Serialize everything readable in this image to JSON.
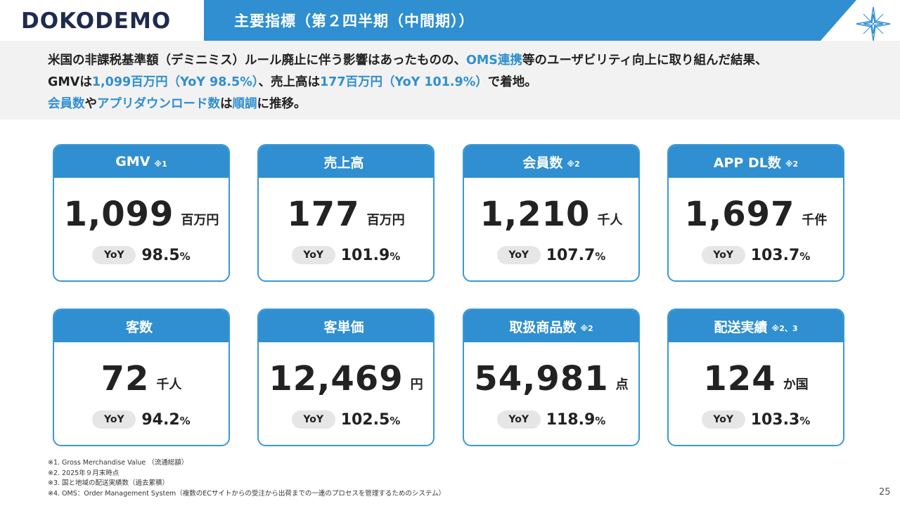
{
  "brand": {
    "logo_text": "DOKODEMO",
    "accent_color": "#2f8fd0",
    "logo_color": "#1f2b4d"
  },
  "header": {
    "title": "主要指標（第２四半期（中間期））"
  },
  "summary": {
    "l1a": "米国の非課税基準額（デミニミス）ルール廃止に伴う影響はあったものの、",
    "l1b": "OMS連携",
    "l1c": "等のユーザビリティ向上に取り組んだ結果、",
    "l2a": "GMVは",
    "l2b": "1,099百万円（YoY 98.5%）",
    "l2c": "、売上高は",
    "l2d": "177百万円（YoY 101.9%）",
    "l2e": "で着地。",
    "l3a": "会員数",
    "l3b": "や",
    "l3c": "アプリダウンロード数",
    "l3d": "は",
    "l3e": "順調",
    "l3f": "に推移。"
  },
  "cards": [
    {
      "title": "GMV",
      "note": "※1",
      "value": "1,099",
      "unit": "百万円",
      "yoy_label": "YoY",
      "yoy": "98.5",
      "pct": "%"
    },
    {
      "title": "売上高",
      "note": "",
      "value": "177",
      "unit": "百万円",
      "yoy_label": "YoY",
      "yoy": "101.9",
      "pct": "%"
    },
    {
      "title": "会員数",
      "note": "※2",
      "value": "1,210",
      "unit": "千人",
      "yoy_label": "YoY",
      "yoy": "107.7",
      "pct": "%"
    },
    {
      "title": "APP DL数",
      "note": "※2",
      "value": "1,697",
      "unit": "千件",
      "yoy_label": "YoY",
      "yoy": "103.7",
      "pct": "%"
    },
    {
      "title": "客数",
      "note": "",
      "value": "72",
      "unit": "千人",
      "yoy_label": "YoY",
      "yoy": "94.2",
      "pct": "%"
    },
    {
      "title": "客単価",
      "note": "",
      "value": "12,469",
      "unit": "円",
      "yoy_label": "YoY",
      "yoy": "102.5",
      "pct": "%"
    },
    {
      "title": "取扱商品数",
      "note": "※2",
      "value": "54,981",
      "unit": "点",
      "yoy_label": "YoY",
      "yoy": "118.9",
      "pct": "%"
    },
    {
      "title": "配送実績",
      "note": "※2、3",
      "value": "124",
      "unit": "か国",
      "yoy_label": "YoY",
      "yoy": "103.3",
      "pct": "%"
    }
  ],
  "footnotes": [
    "※1. Gross Merchandise Value （流通総額）",
    "※2. 2025年９月末時点",
    "※3. 国と地域の配送実績数（過去累積）",
    "※4. OMS：Order Management System（複数のECサイトからの受注から出荷までの一連のプロセスを管理するためのシステム）"
  ],
  "page_number": "25",
  "icons": {
    "logo_mark": "star-compass-icon"
  }
}
